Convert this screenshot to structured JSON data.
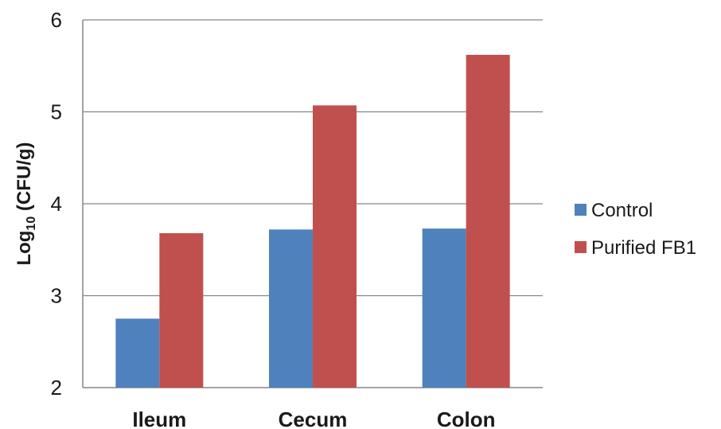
{
  "chart_data": {
    "type": "bar",
    "title": "",
    "xlabel": "",
    "ylabel": {
      "prefix": "Log",
      "subscript": "10",
      "suffix": " (CFU/g)"
    },
    "categories": [
      "Ileum",
      "Cecum",
      "Colon"
    ],
    "series": [
      {
        "name": "Control",
        "values": [
          2.75,
          3.72,
          3.73
        ],
        "color": "#4f81bd"
      },
      {
        "name": "Purified FB1",
        "values": [
          3.68,
          5.07,
          5.62
        ],
        "color": "#c0504d"
      }
    ],
    "ylim": [
      2,
      6
    ],
    "yticks": [
      "2",
      "3",
      "4",
      "5",
      "6"
    ],
    "grid": true,
    "legend_position": "right"
  }
}
